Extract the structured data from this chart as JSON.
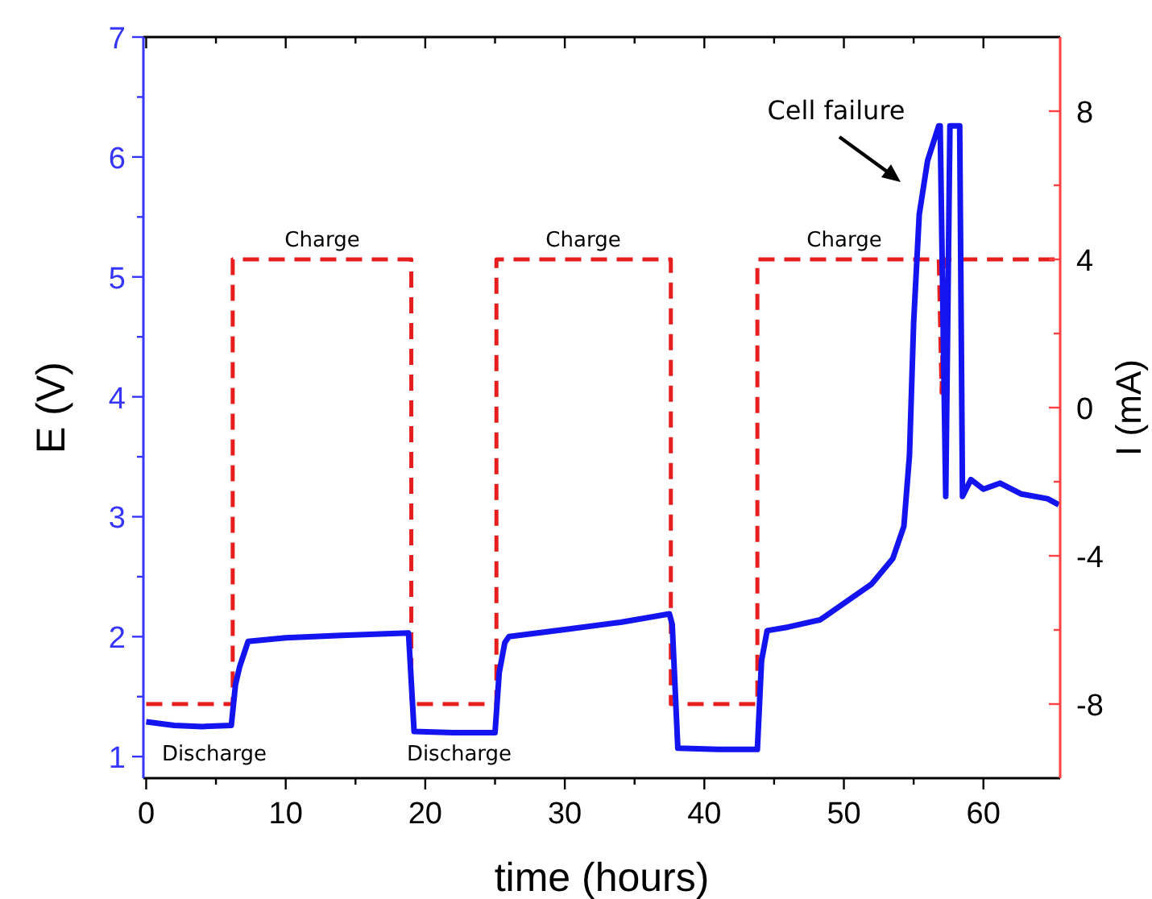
{
  "chart_data": {
    "type": "line",
    "xlabel": "time (hours)",
    "ylabel": "E (V)",
    "y2label": "I (mA)",
    "xlim": [
      -0.2,
      65.5
    ],
    "xticks": [
      0,
      {
        "value": 5,
        "label": null
      },
      10,
      {
        "value": 15,
        "label": null
      },
      20,
      {
        "value": 25,
        "label": null
      },
      30,
      {
        "value": 35,
        "label": null
      },
      40,
      {
        "value": 45,
        "label": null
      },
      50,
      {
        "value": 55,
        "label": null
      },
      60
    ],
    "ylim": [
      0.82,
      7
    ],
    "yticks": [
      1,
      {
        "value": 1.5,
        "label": null
      },
      2,
      {
        "value": 2.5,
        "label": null
      },
      3,
      {
        "value": 3.5,
        "label": null
      },
      4,
      {
        "value": 4.5,
        "label": null
      },
      5,
      {
        "value": 5.5,
        "label": null
      },
      6,
      {
        "value": 6.5,
        "label": null
      },
      7
    ],
    "y2lim": [
      -10,
      10
    ],
    "y2ticks": [
      -8,
      {
        "value": -6,
        "label": null
      },
      -4,
      {
        "value": -2,
        "label": null
      },
      0,
      {
        "value": 2,
        "label": null
      },
      4,
      {
        "value": 6,
        "label": null
      },
      8
    ],
    "series": [
      {
        "color": "#e61e1e",
        "axis": "y2",
        "line_style": "dashed",
        "x": [
          0,
          6.2,
          6.2,
          19.0,
          19.0,
          25.1,
          25.1,
          37.6,
          37.6,
          43.8,
          43.8,
          56.8,
          57.0,
          57.2,
          65.5
        ],
        "values": [
          -8,
          -8,
          4,
          4,
          -8,
          -8,
          4,
          4,
          -8,
          -8,
          4,
          4,
          0.4,
          4,
          4
        ]
      },
      {
        "color": "#1414f0",
        "line_style": "solid",
        "x": [
          0,
          2,
          4,
          6.1,
          6.4,
          6.7,
          7.3,
          10,
          14,
          18.8,
          19.2,
          22,
          25,
          25.3,
          25.7,
          26,
          30,
          34,
          37.5,
          37.7,
          38.1,
          41,
          43.8,
          44.1,
          44.5,
          46,
          48.3,
          52.0,
          53.5,
          54.3,
          54.7,
          55.0,
          55.4,
          56.0,
          56.8,
          56.9,
          57.3,
          57.6,
          58.3,
          58.5,
          59.1,
          60.0,
          61.2,
          62.7,
          64.6,
          65.4
        ],
        "values": [
          1.29,
          1.26,
          1.25,
          1.26,
          1.6,
          1.75,
          1.96,
          1.99,
          2.01,
          2.03,
          1.21,
          1.2,
          1.2,
          1.7,
          1.95,
          2.0,
          2.06,
          2.12,
          2.19,
          2.1,
          1.07,
          1.06,
          1.06,
          1.8,
          2.05,
          2.08,
          2.14,
          2.44,
          2.65,
          2.92,
          3.51,
          4.62,
          5.52,
          5.97,
          6.26,
          6.26,
          3.17,
          6.26,
          6.26,
          3.17,
          3.31,
          3.23,
          3.28,
          3.19,
          3.15,
          3.1
        ]
      }
    ],
    "annotations": [
      "Charge",
      "Charge",
      "Charge",
      "Discharge",
      "Discharge",
      "Cell failure"
    ]
  }
}
